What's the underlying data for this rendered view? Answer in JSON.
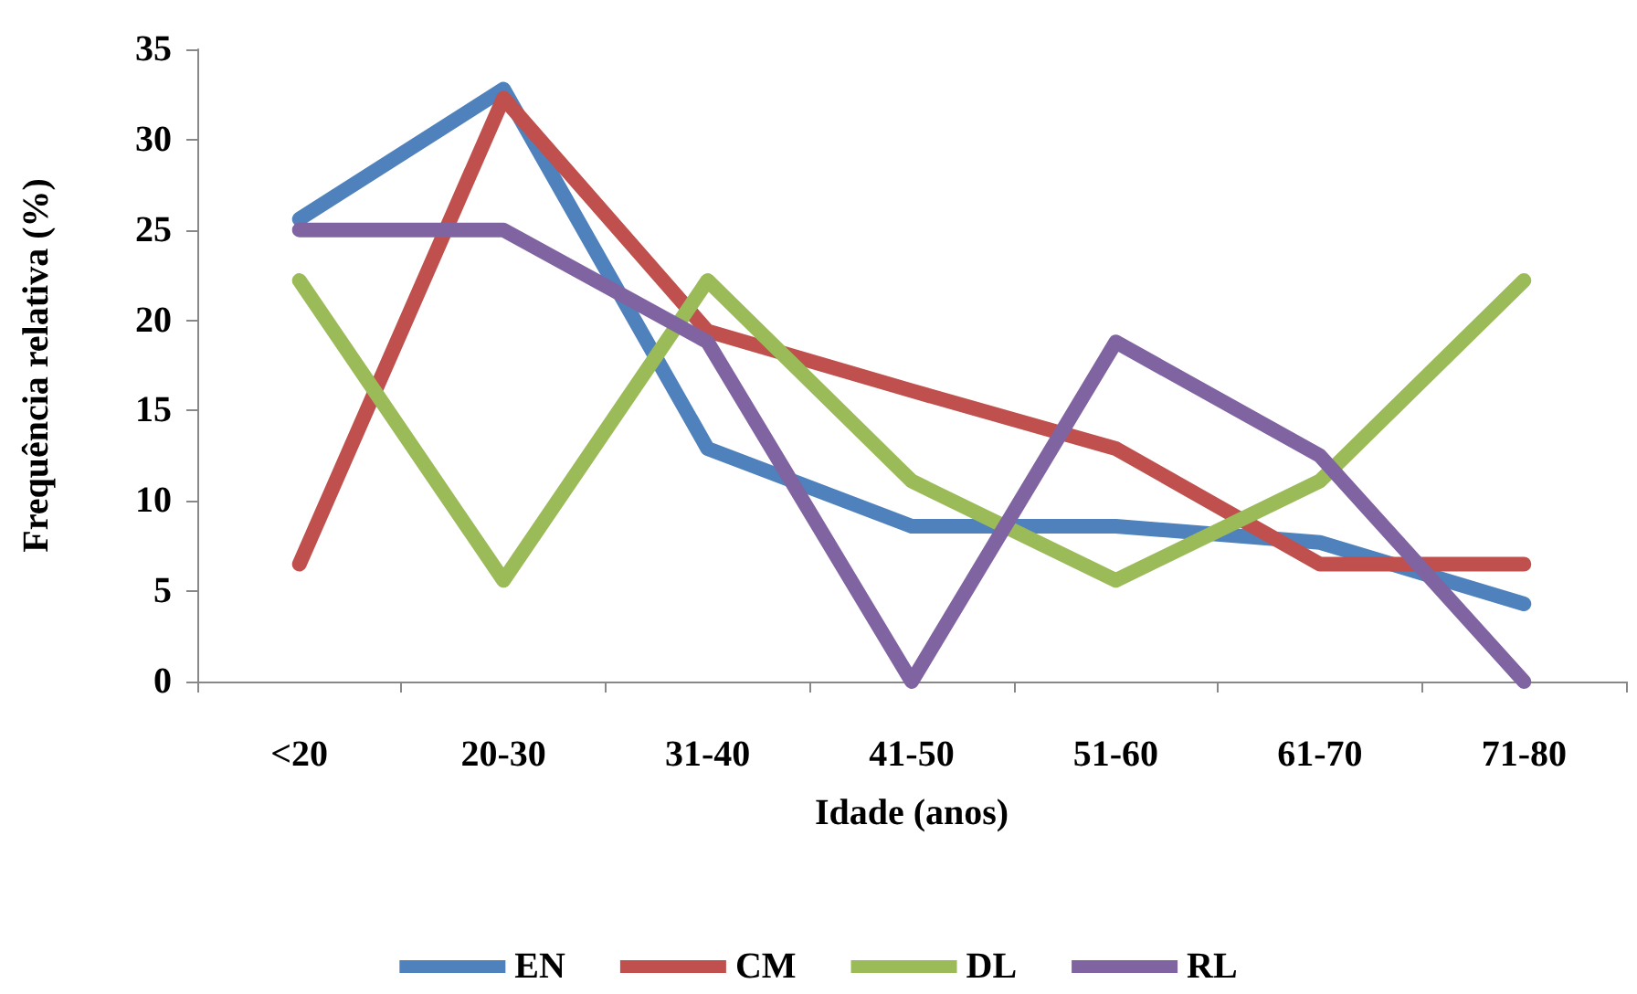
{
  "chart_data": {
    "type": "line",
    "xlabel": "Idade (anos)",
    "ylabel": "Frequência relativa (%)",
    "categories": [
      "<20",
      "20-30",
      "31-40",
      "41-50",
      "51-60",
      "61-70",
      "71-80"
    ],
    "series": [
      {
        "name": "EN",
        "color": "#4f81bd",
        "values": [
          25.6,
          32.8,
          12.9,
          8.6,
          8.6,
          7.7,
          4.3
        ]
      },
      {
        "name": "CM",
        "color": "#c0504d",
        "values": [
          6.5,
          32.3,
          19.4,
          16.1,
          12.9,
          6.5,
          6.5
        ]
      },
      {
        "name": "DL",
        "color": "#9bbb59",
        "values": [
          22.2,
          5.6,
          22.2,
          11.1,
          5.6,
          11.1,
          22.2
        ]
      },
      {
        "name": "RL",
        "color": "#8064a2",
        "values": [
          25,
          25,
          18.8,
          0,
          18.8,
          12.5,
          0
        ]
      }
    ],
    "ylim": [
      0,
      35
    ],
    "yticks": [
      0,
      5,
      10,
      15,
      20,
      25,
      30,
      35
    ],
    "grid": false,
    "legend": "bottom",
    "marker": "none",
    "line_style": "solid"
  }
}
